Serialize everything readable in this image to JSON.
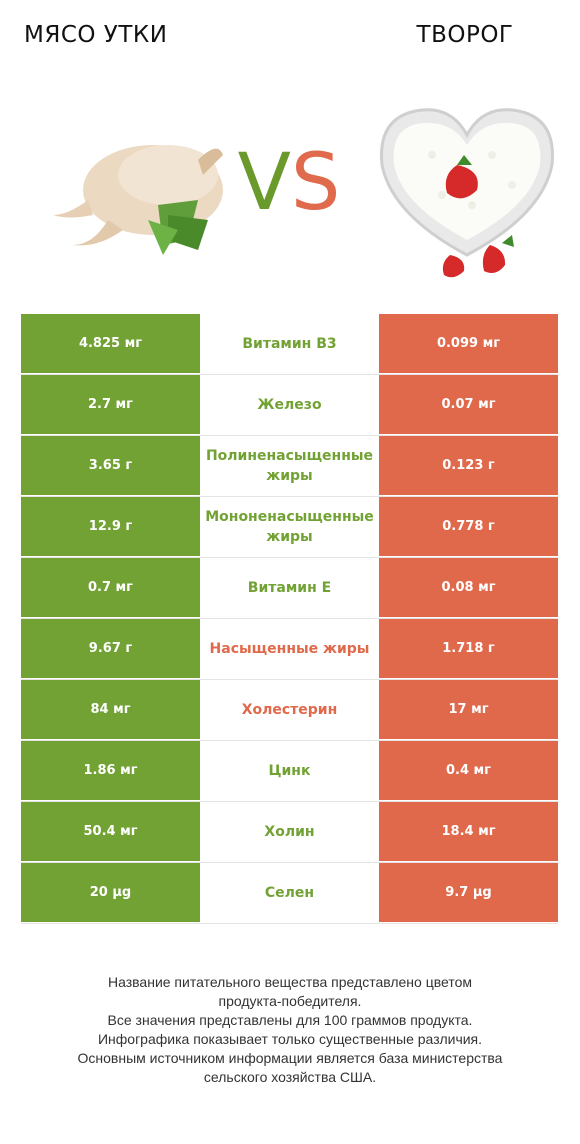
{
  "header": {
    "left_title": "МЯСО УТКИ",
    "right_title": "ТВОРОГ",
    "vs_v": "V",
    "vs_s": "S"
  },
  "colors": {
    "winner_left": "#72a234",
    "winner_right": "#e0694b"
  },
  "rows": [
    {
      "left": "4.825 мг",
      "nutrient": "Витамин B3",
      "right": "0.099 мг",
      "winner": "left"
    },
    {
      "left": "2.7 мг",
      "nutrient": "Железо",
      "right": "0.07 мг",
      "winner": "left"
    },
    {
      "left": "3.65 г",
      "nutrient": "Полиненасыщенные жиры",
      "right": "0.123 г",
      "winner": "left"
    },
    {
      "left": "12.9 г",
      "nutrient": "Мононенасыщенные жиры",
      "right": "0.778 г",
      "winner": "left"
    },
    {
      "left": "0.7 мг",
      "nutrient": "Витамин E",
      "right": "0.08 мг",
      "winner": "left"
    },
    {
      "left": "9.67 г",
      "nutrient": "Насыщенные жиры",
      "right": "1.718 г",
      "winner": "right"
    },
    {
      "left": "84 мг",
      "nutrient": "Холестерин",
      "right": "17 мг",
      "winner": "right"
    },
    {
      "left": "1.86 мг",
      "nutrient": "Цинк",
      "right": "0.4 мг",
      "winner": "left"
    },
    {
      "left": "50.4 мг",
      "nutrient": "Холин",
      "right": "18.4 мг",
      "winner": "left"
    },
    {
      "left": "20 µg",
      "nutrient": "Селен",
      "right": "9.7 µg",
      "winner": "left"
    }
  ],
  "footnote": {
    "line1": "Название питательного вещества представлено цветом",
    "line2": "продукта-победителя.",
    "line3": "Все значения представлены для 100 граммов продукта.",
    "line4": "Инфографика показывает только существенные различия.",
    "line5": "Основным источником информации является база министерства",
    "line6": "сельского хозяйства США."
  }
}
